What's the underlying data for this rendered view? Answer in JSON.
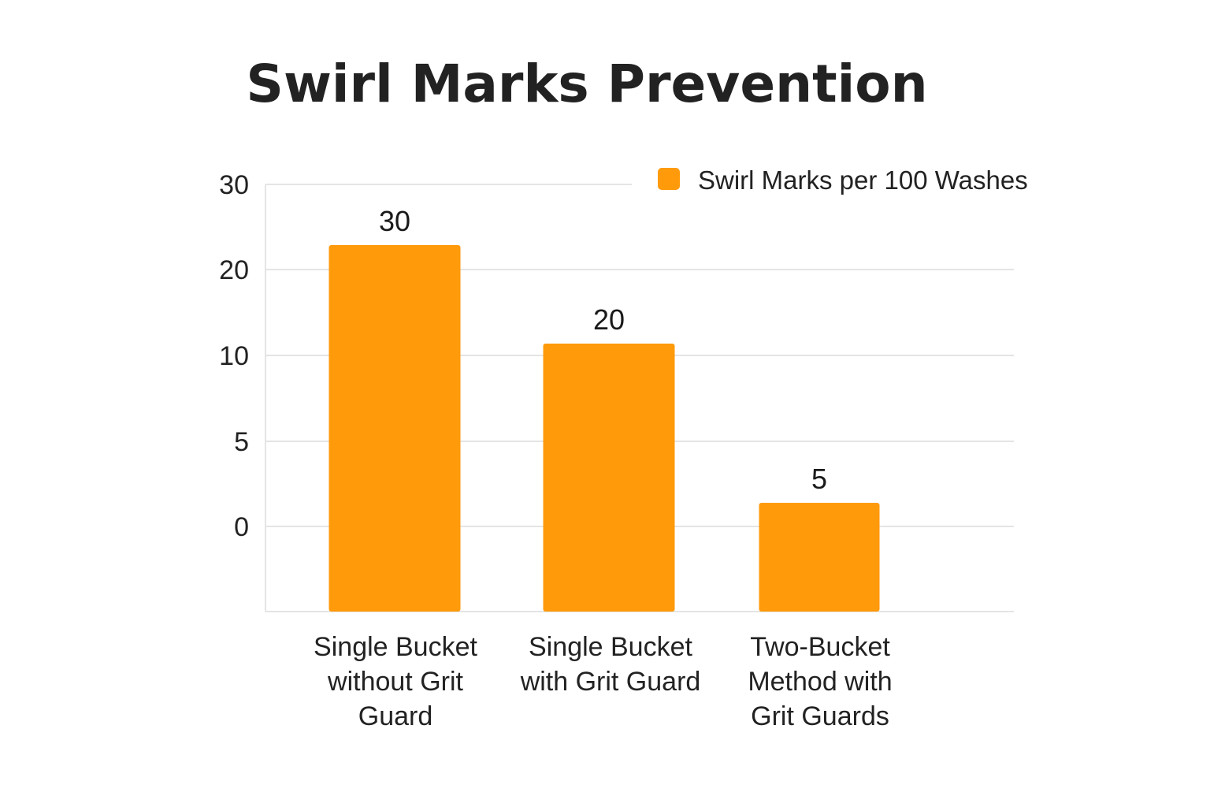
{
  "chart_data": {
    "type": "bar",
    "title": "Swirl Marks Prevention",
    "categories": [
      [
        "Single Bucket",
        "without Grit",
        "Guard"
      ],
      [
        "Single Bucket",
        "with Grit Guard"
      ],
      [
        "Two-Bucket",
        "Method with",
        "Grit Guards"
      ]
    ],
    "series": [
      {
        "name": "Swirl Marks per 100 Washes",
        "values": [
          30,
          20,
          5
        ],
        "color": "#FF9A0A"
      }
    ],
    "data_labels": [
      "30",
      "20",
      "5"
    ],
    "y_ticks": [
      "30",
      "20",
      "10",
      "5",
      "0"
    ],
    "xlabel": "",
    "ylabel": "",
    "grid": true,
    "legend_position": "top-right"
  }
}
